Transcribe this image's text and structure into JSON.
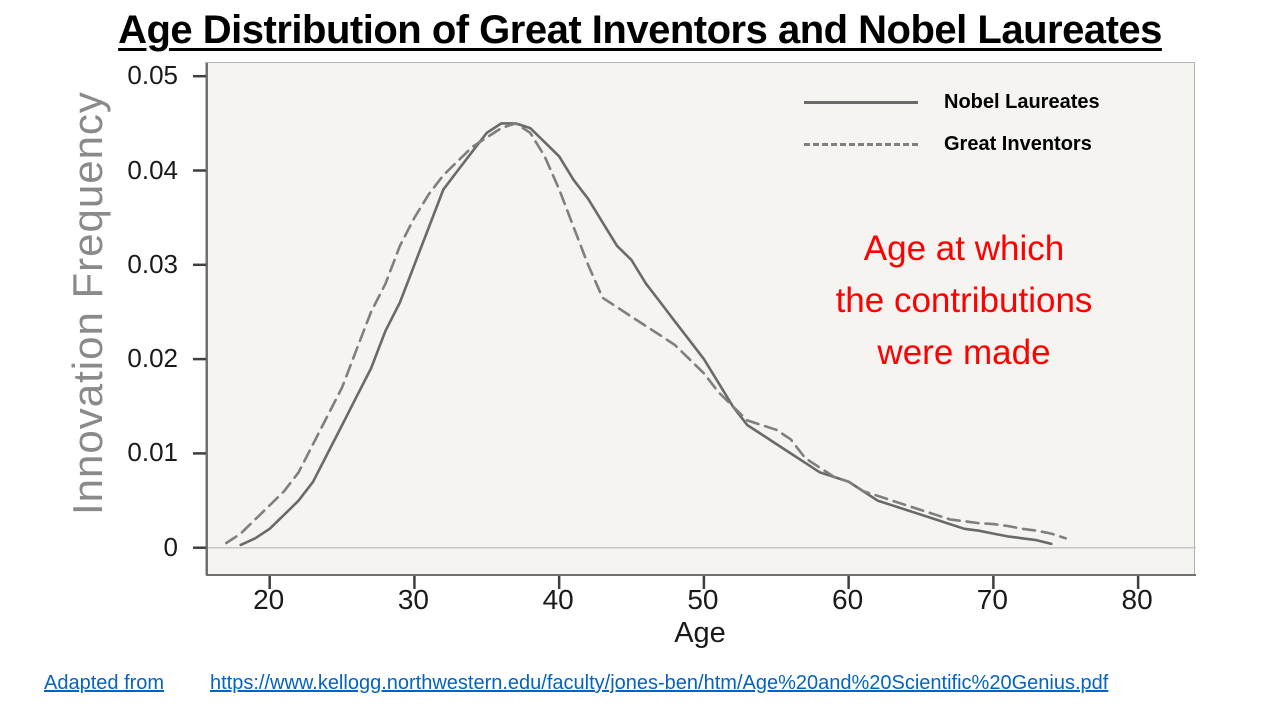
{
  "slide": {
    "title": "Age Distribution of Great Inventors and Nobel Laureates",
    "annotation": {
      "text": "Age at which\nthe contributions\nwere made",
      "color": "#ff0000"
    },
    "footer": {
      "adapted_label": "Adapted from",
      "link_text": "https://www.kellogg.northwestern.edu/faculty/jones-ben/htm/Age%20and%20Scientific%20Genius.pdf",
      "link_color": "#0563c1"
    }
  },
  "chart_data": {
    "type": "line",
    "title": "Age Distribution of Great Inventors and Nobel Laureates",
    "xlabel": "Age",
    "ylabel": "Innovation Frequency",
    "xlim": [
      15.6,
      84
    ],
    "ylim": [
      -0.003,
      0.0514
    ],
    "grid": false,
    "legend_position": "top-right",
    "x_ticks": [
      {
        "value": 20,
        "label": "20"
      },
      {
        "value": 30,
        "label": "30"
      },
      {
        "value": 40,
        "label": "40"
      },
      {
        "value": 50,
        "label": "50"
      },
      {
        "value": 60,
        "label": "60"
      },
      {
        "value": 70,
        "label": "70"
      },
      {
        "value": 80,
        "label": "80"
      }
    ],
    "y_ticks": [
      {
        "value": 0.05,
        "label": "0.05"
      },
      {
        "value": 0.04,
        "label": "0.04"
      },
      {
        "value": 0.03,
        "label": "0.03"
      },
      {
        "value": 0.02,
        "label": "0.02"
      },
      {
        "value": 0.01,
        "label": "0.01"
      },
      {
        "value": 0,
        "label": "0"
      }
    ],
    "series": [
      {
        "name": "Nobel Laureates",
        "style": "solid",
        "color": "#6a6a6a",
        "x": [
          18,
          19,
          20,
          21,
          22,
          23,
          24,
          25,
          26,
          27,
          28,
          29,
          30,
          31,
          32,
          33,
          34,
          35,
          36,
          37,
          38,
          39,
          40,
          41,
          42,
          43,
          44,
          45,
          46,
          47,
          48,
          49,
          50,
          51,
          52,
          53,
          54,
          55,
          56,
          57,
          58,
          59,
          60,
          61,
          62,
          63,
          64,
          65,
          66,
          67,
          68,
          69,
          70,
          71,
          72,
          73,
          74
        ],
        "y": [
          0.0003,
          0.001,
          0.002,
          0.0035,
          0.005,
          0.007,
          0.01,
          0.013,
          0.016,
          0.019,
          0.023,
          0.026,
          0.03,
          0.034,
          0.038,
          0.04,
          0.042,
          0.044,
          0.045,
          0.045,
          0.0445,
          0.043,
          0.0415,
          0.039,
          0.037,
          0.0345,
          0.032,
          0.0305,
          0.028,
          0.026,
          0.024,
          0.022,
          0.02,
          0.0175,
          0.015,
          0.013,
          0.012,
          0.011,
          0.01,
          0.009,
          0.008,
          0.0075,
          0.007,
          0.006,
          0.005,
          0.0045,
          0.004,
          0.0035,
          0.003,
          0.0025,
          0.002,
          0.0018,
          0.0015,
          0.0012,
          0.001,
          0.0008,
          0.0004
        ]
      },
      {
        "name": "Great Inventors",
        "style": "dashed",
        "color": "#7f7f7f",
        "x": [
          17,
          18,
          19,
          20,
          21,
          22,
          23,
          24,
          25,
          26,
          27,
          28,
          29,
          30,
          31,
          32,
          33,
          34,
          35,
          36,
          37,
          38,
          39,
          40,
          41,
          42,
          43,
          44,
          45,
          46,
          47,
          48,
          49,
          50,
          51,
          52,
          53,
          54,
          55,
          56,
          57,
          58,
          59,
          60,
          61,
          62,
          63,
          64,
          65,
          66,
          67,
          68,
          69,
          70,
          71,
          72,
          73,
          74,
          75
        ],
        "y": [
          0.0005,
          0.0015,
          0.003,
          0.0045,
          0.006,
          0.008,
          0.011,
          0.014,
          0.017,
          0.021,
          0.025,
          0.028,
          0.032,
          0.035,
          0.0375,
          0.0395,
          0.041,
          0.0425,
          0.0435,
          0.0445,
          0.045,
          0.044,
          0.0415,
          0.038,
          0.034,
          0.03,
          0.0265,
          0.0255,
          0.0245,
          0.0235,
          0.0225,
          0.0215,
          0.02,
          0.0185,
          0.0165,
          0.015,
          0.0135,
          0.013,
          0.0125,
          0.0115,
          0.0095,
          0.0085,
          0.0075,
          0.007,
          0.006,
          0.0055,
          0.005,
          0.0045,
          0.004,
          0.0035,
          0.003,
          0.0028,
          0.0026,
          0.0025,
          0.0023,
          0.002,
          0.0018,
          0.0015,
          0.001
        ]
      }
    ]
  }
}
